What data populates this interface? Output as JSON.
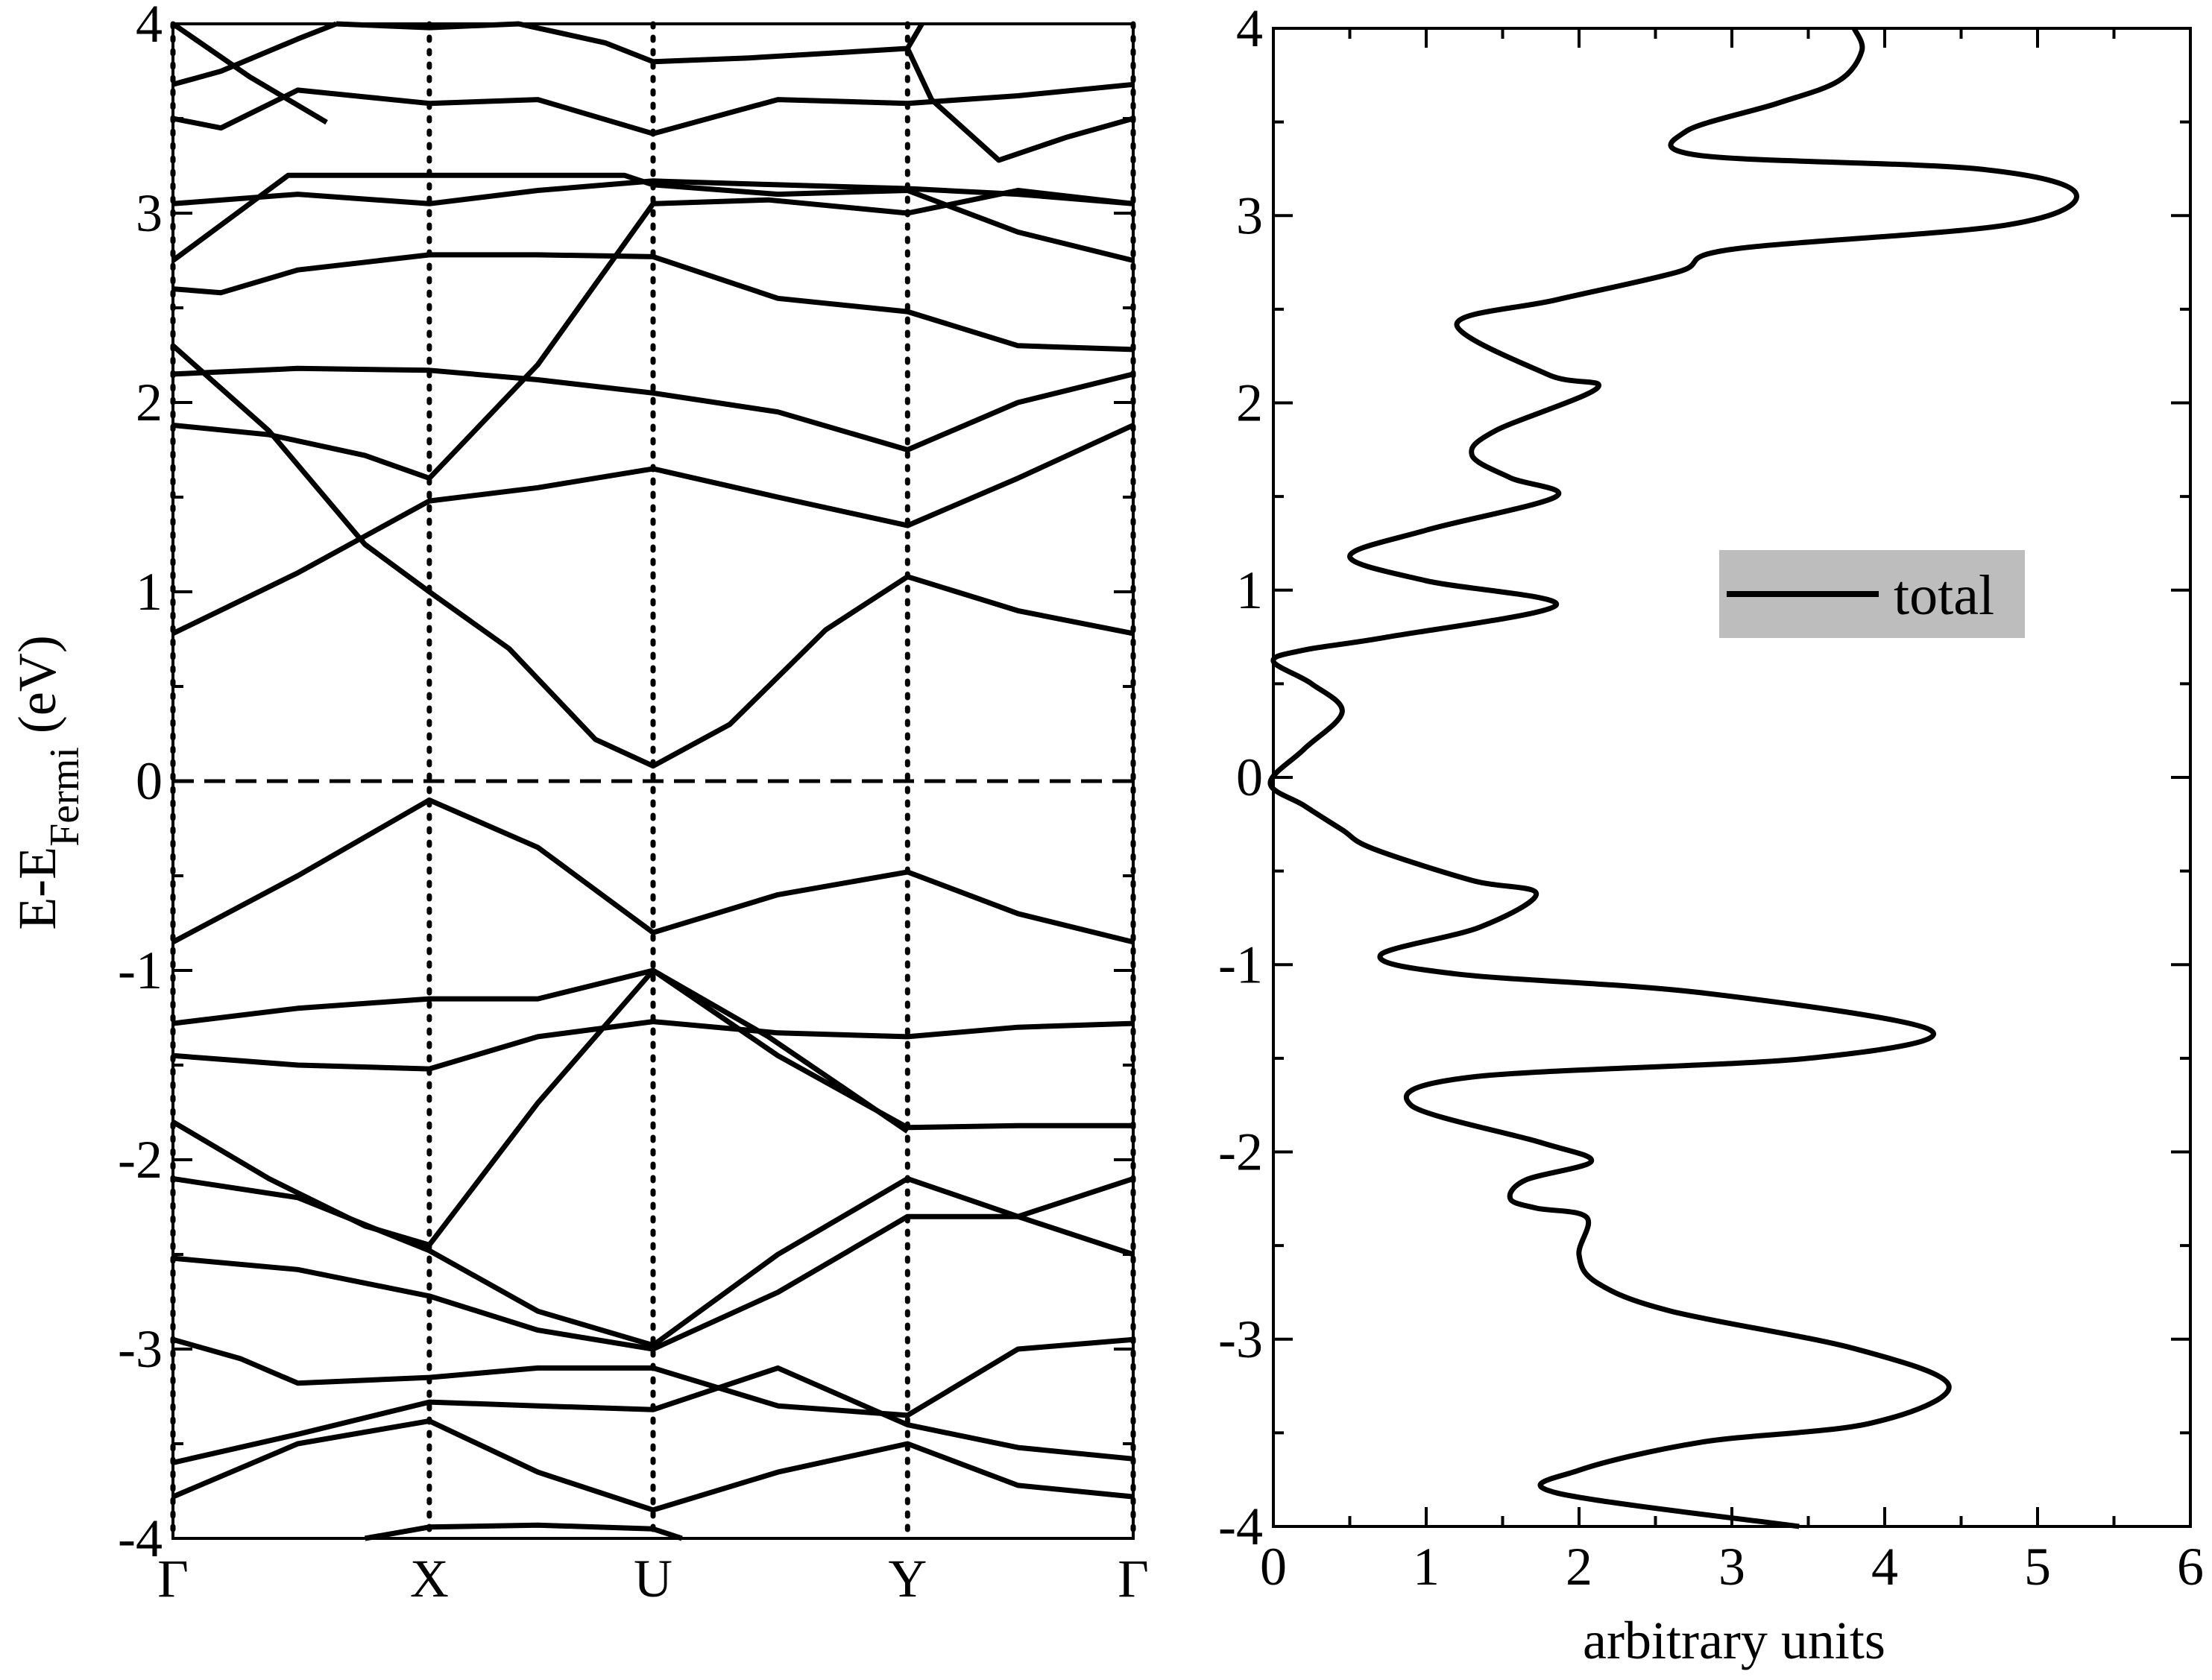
{
  "chart_data": [
    {
      "type": "line",
      "title": "",
      "xlabel": "",
      "ylabel_parts": {
        "main": "E-E",
        "sub": "Fermi",
        "unit": " (eV)"
      },
      "ylim": [
        -4,
        4
      ],
      "yticks": [
        -4,
        -3,
        -2,
        -1,
        0,
        1,
        2,
        3,
        4
      ],
      "ytick_labels": [
        "-4",
        "-3",
        "-2",
        "-1",
        "0",
        "1",
        "2",
        "3",
        "4"
      ],
      "kpoints": [
        {
          "label": "Γ",
          "pos": 0.0
        },
        {
          "label": "X",
          "pos": 0.267
        },
        {
          "label": "U",
          "pos": 0.5
        },
        {
          "label": "Y",
          "pos": 0.765
        },
        {
          "label": "Γ",
          "pos": 1.0
        }
      ],
      "fermi_level": 0,
      "grid": false,
      "bands": [
        {
          "x": [
            0,
            0.13,
            0.267,
            0.38,
            0.5,
            0.63,
            0.765,
            0.88,
            1.0
          ],
          "y": [
            -0.85,
            -0.5,
            -0.1,
            -0.35,
            -0.8,
            -0.6,
            -0.48,
            -0.7,
            -0.85
          ]
        },
        {
          "x": [
            0,
            0.13,
            0.267,
            0.38,
            0.5,
            0.63,
            0.765,
            0.88,
            1.0
          ],
          "y": [
            0.78,
            1.1,
            1.48,
            1.55,
            1.65,
            1.5,
            1.35,
            1.6,
            1.88
          ]
        },
        {
          "x": [
            0,
            0.1,
            0.2,
            0.267,
            0.35,
            0.44,
            0.5,
            0.58,
            0.68,
            0.765,
            0.88,
            1.0
          ],
          "y": [
            2.3,
            1.85,
            1.25,
            1.0,
            0.7,
            0.22,
            0.08,
            0.3,
            0.8,
            1.08,
            0.9,
            0.78
          ]
        },
        {
          "x": [
            0,
            0.1,
            0.2,
            0.267,
            0.38,
            0.5,
            0.62,
            0.765,
            0.88,
            1.0
          ],
          "y": [
            1.88,
            1.83,
            1.72,
            1.6,
            2.2,
            3.05,
            3.07,
            3.0,
            3.12,
            3.05
          ]
        },
        {
          "x": [
            0,
            0.13,
            0.267,
            0.38,
            0.5,
            0.63,
            0.765,
            0.88,
            1.0
          ],
          "y": [
            2.15,
            2.18,
            2.17,
            2.12,
            2.05,
            1.95,
            1.75,
            2.0,
            2.15
          ]
        },
        {
          "x": [
            0,
            0.05,
            0.13,
            0.267,
            0.38,
            0.5,
            0.63,
            0.765,
            0.88,
            1.0
          ],
          "y": [
            2.6,
            2.58,
            2.7,
            2.78,
            2.78,
            2.77,
            2.55,
            2.48,
            2.3,
            2.28
          ]
        },
        {
          "x": [
            0,
            0.04,
            0.12,
            0.267,
            0.38,
            0.47,
            0.5,
            0.63,
            0.765,
            0.88,
            1.0
          ],
          "y": [
            2.75,
            2.9,
            3.2,
            3.2,
            3.2,
            3.2,
            3.15,
            3.1,
            3.12,
            2.9,
            2.75
          ]
        },
        {
          "x": [
            0,
            0.13,
            0.267,
            0.38,
            0.5,
            0.63,
            0.765,
            0.88,
            1.0
          ],
          "y": [
            3.05,
            3.1,
            3.05,
            3.12,
            3.17,
            3.15,
            3.13,
            3.1,
            3.05
          ]
        },
        {
          "x": [
            0,
            0.05,
            0.13,
            0.267,
            0.38,
            0.5,
            0.63,
            0.765,
            0.88,
            1.0
          ],
          "y": [
            3.5,
            3.45,
            3.65,
            3.58,
            3.6,
            3.42,
            3.6,
            3.58,
            3.62,
            3.68
          ]
        },
        {
          "x": [
            0,
            0.05,
            0.13,
            0.17
          ],
          "y": [
            3.68,
            3.75,
            3.92,
            4.0
          ]
        },
        {
          "x": [
            0,
            0.08,
            0.16
          ],
          "y": [
            4.0,
            3.72,
            3.48
          ]
        },
        {
          "x": [
            0.17,
            0.267,
            0.36,
            0.45,
            0.5,
            0.6,
            0.7,
            0.765,
            0.78
          ],
          "y": [
            4.0,
            3.98,
            4.0,
            3.9,
            3.8,
            3.82,
            3.85,
            3.87,
            4.0
          ]
        },
        {
          "x": [
            0.765,
            0.79,
            0.86,
            0.93,
            1.0
          ],
          "y": [
            3.87,
            3.6,
            3.28,
            3.4,
            3.5
          ]
        },
        {
          "x": [
            0,
            0.13,
            0.267,
            0.38,
            0.5,
            0.63,
            0.765,
            0.88,
            1.0
          ],
          "y": [
            -1.28,
            -1.2,
            -1.15,
            -1.15,
            -1.0,
            -1.45,
            -1.83,
            -1.82,
            -1.82
          ]
        },
        {
          "x": [
            0,
            0.13,
            0.267,
            0.38,
            0.5,
            0.63,
            0.765,
            0.88,
            1.0
          ],
          "y": [
            -1.45,
            -1.5,
            -1.52,
            -1.35,
            -1.27,
            -1.33,
            -1.35,
            -1.3,
            -1.28
          ]
        },
        {
          "x": [
            0,
            0.1,
            0.2,
            0.267,
            0.38,
            0.5,
            0.62,
            0.765
          ],
          "y": [
            -1.8,
            -2.1,
            -2.35,
            -2.45,
            -1.7,
            -1.0,
            -1.35,
            -1.85
          ]
        },
        {
          "x": [
            0,
            0.13,
            0.267,
            0.38,
            0.5,
            0.63,
            0.765,
            0.88,
            1.0
          ],
          "y": [
            -2.1,
            -2.2,
            -2.48,
            -2.8,
            -2.98,
            -2.5,
            -2.1,
            -2.3,
            -2.1
          ]
        },
        {
          "x": [
            0,
            0.13,
            0.267,
            0.38,
            0.5,
            0.63,
            0.765,
            0.88,
            1.0
          ],
          "y": [
            -2.52,
            -2.58,
            -2.72,
            -2.9,
            -3.0,
            -2.7,
            -2.3,
            -2.3,
            -2.5
          ]
        },
        {
          "x": [
            0,
            0.07,
            0.13,
            0.267,
            0.38,
            0.5,
            0.63,
            0.765,
            0.88,
            1.0
          ],
          "y": [
            -2.95,
            -3.05,
            -3.18,
            -3.15,
            -3.1,
            -3.1,
            -3.3,
            -3.35,
            -3.0,
            -2.95
          ]
        },
        {
          "x": [
            0,
            0.13,
            0.267,
            0.38,
            0.5,
            0.63,
            0.765,
            0.88,
            1.0
          ],
          "y": [
            -3.6,
            -3.45,
            -3.28,
            -3.3,
            -3.32,
            -3.1,
            -3.4,
            -3.52,
            -3.58
          ]
        },
        {
          "x": [
            0,
            0.13,
            0.267,
            0.38,
            0.5,
            0.63,
            0.765,
            0.88,
            1.0
          ],
          "y": [
            -3.78,
            -3.5,
            -3.38,
            -3.65,
            -3.85,
            -3.65,
            -3.5,
            -3.72,
            -3.78
          ]
        },
        {
          "x": [
            0.2,
            0.267,
            0.38,
            0.5,
            0.53
          ],
          "y": [
            -4.0,
            -3.94,
            -3.93,
            -3.95,
            -4.0
          ]
        }
      ]
    },
    {
      "type": "line",
      "title": "",
      "xlabel": "arbitrary units",
      "ylabel": "",
      "xlim": [
        0,
        6
      ],
      "ylim": [
        -4,
        4
      ],
      "xticks": [
        0,
        1,
        2,
        3,
        4,
        5,
        6
      ],
      "xtick_labels": [
        "0",
        "1",
        "2",
        "3",
        "4",
        "5",
        "6"
      ],
      "yticks": [
        -4,
        -3,
        -2,
        -1,
        0,
        1,
        2,
        3,
        4
      ],
      "ytick_labels": [
        "-4",
        "-3",
        "-2",
        "-1",
        "0",
        "1",
        "2",
        "3",
        "4"
      ],
      "grid": false,
      "legend": {
        "position": "center-right",
        "entries": [
          "total"
        ],
        "background": "#bdbdbd"
      },
      "series": [
        {
          "name": "total",
          "x": [
            3.44,
            1.85,
            2.0,
            2.8,
            3.9,
            4.42,
            3.8,
            2.6,
            2.12,
            2.0,
            2.05,
            1.72,
            1.55,
            1.65,
            2.08,
            1.75,
            0.9,
            1.3,
            3.5,
            4.3,
            2.8,
            1.2,
            0.7,
            1.35,
            1.72,
            1.3,
            0.65,
            0.45,
            0.2,
            -0.02,
            0.2,
            0.45,
            0.25,
            0.0,
            0.2,
            0.75,
            1.85,
            1.0,
            0.5,
            1.0,
            1.85,
            1.55,
            1.3,
            1.45,
            2.12,
            1.8,
            1.2,
            1.85,
            2.65,
            3.0,
            4.8,
            5.25,
            4.6,
            2.8,
            2.7,
            3.3,
            3.7,
            3.85,
            3.8
          ],
          "y": [
            -4.0,
            -3.82,
            -3.7,
            -3.55,
            -3.45,
            -3.25,
            -3.05,
            -2.85,
            -2.7,
            -2.55,
            -2.35,
            -2.3,
            -2.25,
            -2.15,
            -2.05,
            -1.95,
            -1.75,
            -1.6,
            -1.5,
            -1.35,
            -1.15,
            -1.05,
            -0.95,
            -0.8,
            -0.62,
            -0.55,
            -0.38,
            -0.28,
            -0.15,
            -0.03,
            0.15,
            0.35,
            0.5,
            0.62,
            0.68,
            0.75,
            0.92,
            1.05,
            1.18,
            1.32,
            1.5,
            1.6,
            1.72,
            1.85,
            2.08,
            2.15,
            2.42,
            2.55,
            2.7,
            2.82,
            2.95,
            3.12,
            3.25,
            3.32,
            3.45,
            3.6,
            3.72,
            3.88,
            4.0
          ]
        }
      ]
    }
  ]
}
